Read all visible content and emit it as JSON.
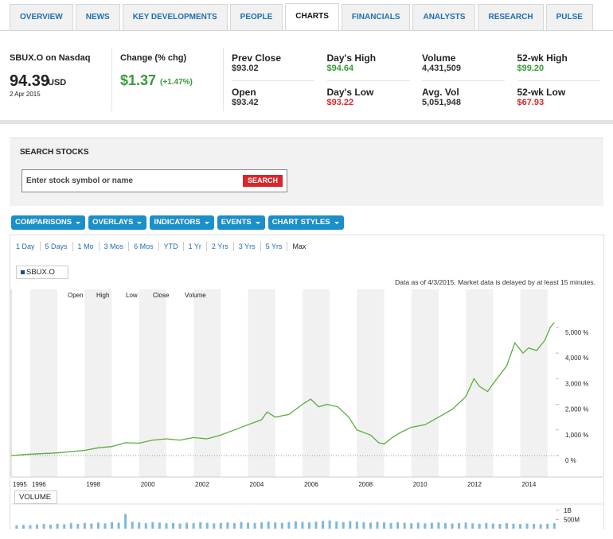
{
  "tabs": [
    "OVERVIEW",
    "NEWS",
    "KEY DEVELOPMENTS",
    "PEOPLE",
    "CHARTS",
    "FINANCIALS",
    "ANALYSTS",
    "RESEARCH",
    "PULSE"
  ],
  "active_tab": "CHARTS",
  "quote": {
    "symbol": "SBUX.O on Nasdaq",
    "price": "94.39",
    "currency": "USD",
    "date": "2 Apr 2015",
    "change_label": "Change (% chg)",
    "change": "$1.37",
    "change_pct": "(+1.47%)"
  },
  "stats": [
    [
      {
        "label": "Prev Close",
        "value": "$93.02"
      },
      {
        "label": "Open",
        "value": "$93.42"
      }
    ],
    [
      {
        "label": "Day's High",
        "value": "$94.64",
        "color": "#3a9a3a"
      },
      {
        "label": "Day's Low",
        "value": "$93.22",
        "color": "#d9262b"
      }
    ],
    [
      {
        "label": "Volume",
        "value": "4,431,509"
      },
      {
        "label": "Avg. Vol",
        "value": "5,051,948"
      }
    ],
    [
      {
        "label": "52-wk High",
        "value": "$99.20",
        "color": "#3a9a3a"
      },
      {
        "label": "52-wk Low",
        "value": "$67.93",
        "color": "#d9262b"
      }
    ]
  ],
  "search": {
    "title": "SEARCH STOCKS",
    "placeholder": "Enter stock symbol or name",
    "button": "SEARCH"
  },
  "toolbar": [
    "COMPARISONS",
    "OVERLAYS",
    "INDICATORS",
    "EVENTS",
    "CHART STYLES"
  ],
  "ranges": [
    "1 Day",
    "5 Days",
    "1 Mo",
    "3 Mos",
    "6 Mos",
    "YTD",
    "1 Yr",
    "2 Yrs",
    "3 Yrs",
    "5 Yrs",
    "Max"
  ],
  "chart_data": [
    {
      "type": "line",
      "note": "Data as of 4/3/2015. Market data is delayed by at least 15 minutes.",
      "header_labels": [
        "Open",
        "High",
        "Low",
        "Close",
        "Volume"
      ],
      "x": [
        1995.3,
        1996,
        1997,
        1998,
        1998.5,
        1999,
        1999.5,
        2000,
        2000.5,
        2001,
        2001.5,
        2002,
        2002.5,
        2003,
        2003.5,
        2004,
        2004.5,
        2004.7,
        2005,
        2005.5,
        2006,
        2006.3,
        2006.6,
        2006.9,
        2007.3,
        2007.7,
        2008,
        2008.5,
        2008.8,
        2009,
        2009.3,
        2009.6,
        2010,
        2010.5,
        2011,
        2011.5,
        2012,
        2012.3,
        2012.5,
        2012.8,
        2013,
        2013.5,
        2013.8,
        2014.1,
        2014.3,
        2014.6,
        2014.9,
        2015.1,
        2015.25
      ],
      "series": [
        {
          "name": "SBUX.O",
          "color": "#5aac3c",
          "values": [
            0,
            50,
            100,
            200,
            300,
            350,
            500,
            480,
            600,
            650,
            600,
            700,
            650,
            800,
            1000,
            1200,
            1400,
            1700,
            1500,
            1600,
            2000,
            2200,
            1900,
            2000,
            1900,
            1500,
            1000,
            800,
            500,
            450,
            700,
            900,
            1100,
            1200,
            1500,
            1800,
            2300,
            3000,
            2700,
            2500,
            2800,
            3500,
            4400,
            4000,
            4200,
            4100,
            4500,
            5000,
            5200
          ]
        }
      ],
      "xlim": [
        1995.3,
        2015.3
      ],
      "xticks": [
        1995,
        1996,
        1998,
        2000,
        2002,
        2004,
        2006,
        2008,
        2010,
        2012,
        2014
      ],
      "ylim": [
        -840,
        6490
      ],
      "yticks": [
        {
          "value": 0,
          "label": "0 %"
        },
        {
          "value": 1000,
          "label": "1,000 %"
        },
        {
          "value": 2000,
          "label": "2,000 %"
        },
        {
          "value": 3000,
          "label": "3,000 %"
        },
        {
          "value": 4000,
          "label": "4,000 %"
        },
        {
          "value": 5000,
          "label": "5,000 %"
        }
      ]
    },
    {
      "type": "bar",
      "title": "VOLUME",
      "color": "#7fb8de",
      "x": [
        1995.5,
        1995.75,
        1996,
        1996.25,
        1996.5,
        1996.75,
        1997,
        1997.25,
        1997.5,
        1997.75,
        1998,
        1998.25,
        1998.5,
        1998.75,
        1999,
        1999.25,
        1999.5,
        1999.75,
        2000,
        2000.25,
        2000.5,
        2000.75,
        2001,
        2001.25,
        2001.5,
        2001.75,
        2002,
        2002.25,
        2002.5,
        2002.75,
        2003,
        2003.25,
        2003.5,
        2003.75,
        2004,
        2004.25,
        2004.5,
        2004.75,
        2005,
        2005.25,
        2005.5,
        2005.75,
        2006,
        2006.25,
        2006.5,
        2006.75,
        2007,
        2007.25,
        2007.5,
        2007.75,
        2008,
        2008.25,
        2008.5,
        2008.75,
        2009,
        2009.25,
        2009.5,
        2009.75,
        2010,
        2010.25,
        2010.5,
        2010.75,
        2011,
        2011.25,
        2011.5,
        2011.75,
        2012,
        2012.25,
        2012.5,
        2012.75,
        2013,
        2013.25,
        2013.5,
        2013.75,
        2014,
        2014.25,
        2014.5,
        2014.75,
        2015,
        2015.25
      ],
      "values": [
        180,
        210,
        190,
        230,
        250,
        220,
        270,
        240,
        300,
        260,
        310,
        280,
        330,
        290,
        350,
        320,
        800,
        380,
        340,
        300,
        360,
        330,
        290,
        310,
        280,
        330,
        300,
        350,
        320,
        290,
        310,
        340,
        300,
        360,
        330,
        310,
        350,
        380,
        340,
        320,
        360,
        400,
        370,
        340,
        380,
        420,
        450,
        390,
        360,
        410,
        380,
        350,
        330,
        370,
        340,
        310,
        350,
        320,
        300,
        330,
        290,
        320,
        340,
        310,
        280,
        300,
        330,
        290,
        270,
        310,
        280,
        260,
        300,
        270,
        250,
        280,
        260,
        240,
        270,
        300
      ],
      "xlim": [
        1995.3,
        2015.3
      ],
      "ylim": [
        0,
        1300
      ],
      "yticks": [
        {
          "value": 1000,
          "label": "1B"
        },
        {
          "value": 500,
          "label": "500M"
        }
      ]
    }
  ]
}
